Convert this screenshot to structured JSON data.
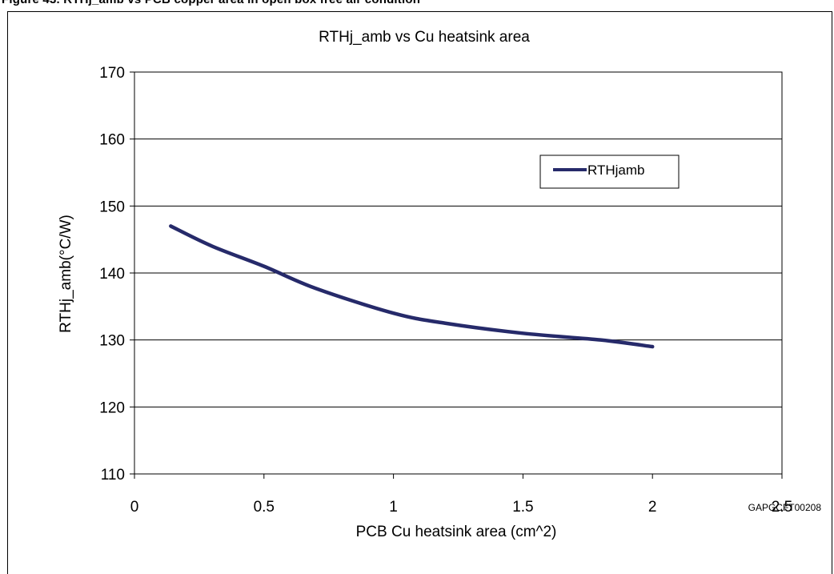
{
  "figure_caption": "Figure 43. RTHj_amb vs PCB copper area in open box free air condition",
  "figure_code": "GAPGCFT00208",
  "chart_data": {
    "type": "line",
    "title": "RTHj_amb vs Cu heatsink area",
    "xlabel": "PCB Cu heatsink area (cm^2)",
    "ylabel": "RTHj_amb(°C/W)",
    "xlim": [
      0,
      2.5
    ],
    "ylim": [
      110,
      170
    ],
    "x_ticks": [
      0,
      0.5,
      1,
      1.5,
      2,
      2.5
    ],
    "x_tick_labels": [
      "0",
      "0.5",
      "1",
      "1.5",
      "2",
      "2.5"
    ],
    "y_ticks": [
      110,
      120,
      130,
      140,
      150,
      160,
      170
    ],
    "y_tick_labels": [
      "110",
      "120",
      "130",
      "140",
      "150",
      "160",
      "170"
    ],
    "grid": "horizontal",
    "legend_position": "top-right",
    "series": [
      {
        "name": "RTHjamb",
        "color": "#262a6a",
        "x": [
          0.14,
          0.3,
          0.5,
          0.7,
          1.0,
          1.2,
          1.5,
          1.8,
          2.0
        ],
        "y": [
          147,
          144,
          141,
          137.7,
          134,
          132.5,
          131,
          130,
          129
        ]
      }
    ]
  }
}
